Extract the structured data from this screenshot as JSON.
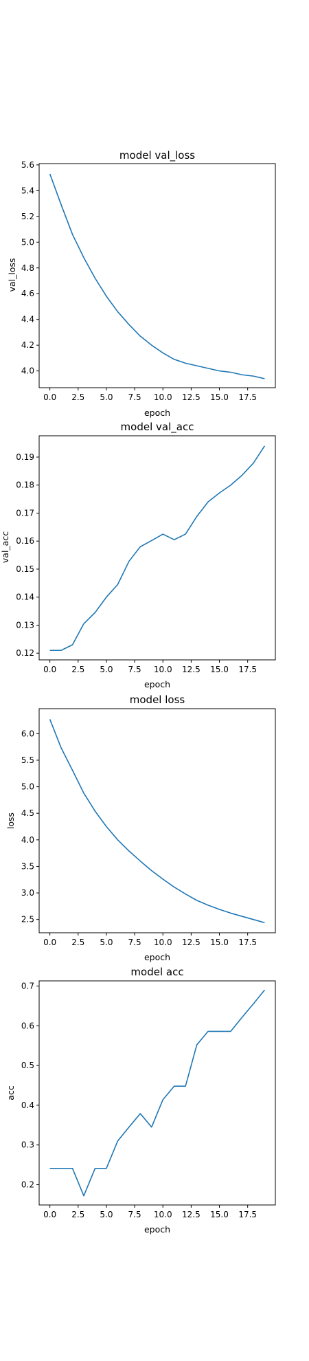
{
  "chart_data": [
    {
      "type": "line",
      "title": "model val_loss",
      "xlabel": "epoch",
      "ylabel": "val_loss",
      "x": [
        0,
        1,
        2,
        3,
        4,
        5,
        6,
        7,
        8,
        9,
        10,
        11,
        12,
        13,
        14,
        15,
        16,
        17,
        18,
        19
      ],
      "series": [
        {
          "values": [
            5.53,
            5.29,
            5.06,
            4.88,
            4.72,
            4.58,
            4.46,
            4.36,
            4.27,
            4.2,
            4.14,
            4.09,
            4.06,
            4.04,
            4.02,
            4.0,
            3.99,
            3.97,
            3.96,
            3.94
          ]
        }
      ],
      "xlim": [
        -0.95,
        19.95
      ],
      "ylim": [
        3.87,
        5.61
      ],
      "xticks": [
        0.0,
        2.5,
        5.0,
        7.5,
        10.0,
        12.5,
        15.0,
        17.5
      ],
      "xtick_labels": [
        "0.0",
        "2.5",
        "5.0",
        "7.5",
        "10.0",
        "12.5",
        "15.0",
        "17.5"
      ],
      "yticks": [
        4.0,
        4.2,
        4.4,
        4.6,
        4.8,
        5.0,
        5.2,
        5.4,
        5.6
      ],
      "ytick_labels": [
        "4.0",
        "4.2",
        "4.4",
        "4.6",
        "4.8",
        "5.0",
        "5.2",
        "5.4",
        "5.6"
      ],
      "color": "#1f77b4",
      "grid": false,
      "legend": "none"
    },
    {
      "type": "line",
      "title": "model val_acc",
      "xlabel": "epoch",
      "ylabel": "val_acc",
      "x": [
        0,
        1,
        2,
        3,
        4,
        5,
        6,
        7,
        8,
        9,
        10,
        11,
        12,
        13,
        14,
        15,
        16,
        17,
        18,
        19
      ],
      "series": [
        {
          "values": [
            0.121,
            0.121,
            0.123,
            0.1305,
            0.1345,
            0.14,
            0.1445,
            0.1528,
            0.158,
            0.1602,
            0.1625,
            0.1605,
            0.1625,
            0.1688,
            0.174,
            0.1772,
            0.18,
            0.1835,
            0.1878,
            0.194
          ]
        }
      ],
      "xlim": [
        -0.95,
        19.95
      ],
      "ylim": [
        0.1176,
        0.1976
      ],
      "xticks": [
        0.0,
        2.5,
        5.0,
        7.5,
        10.0,
        12.5,
        15.0,
        17.5
      ],
      "xtick_labels": [
        "0.0",
        "2.5",
        "5.0",
        "7.5",
        "10.0",
        "12.5",
        "15.0",
        "17.5"
      ],
      "yticks": [
        0.12,
        0.13,
        0.14,
        0.15,
        0.16,
        0.17,
        0.18,
        0.19
      ],
      "ytick_labels": [
        "0.12",
        "0.13",
        "0.14",
        "0.15",
        "0.16",
        "0.17",
        "0.18",
        "0.19"
      ],
      "color": "#1f77b4",
      "grid": false,
      "legend": "none"
    },
    {
      "type": "line",
      "title": "model loss",
      "xlabel": "epoch",
      "ylabel": "loss",
      "x": [
        0,
        1,
        2,
        3,
        4,
        5,
        6,
        7,
        8,
        9,
        10,
        11,
        12,
        13,
        14,
        15,
        16,
        17,
        18,
        19
      ],
      "series": [
        {
          "values": [
            6.27,
            5.73,
            5.31,
            4.88,
            4.54,
            4.25,
            4.0,
            3.79,
            3.6,
            3.42,
            3.26,
            3.11,
            2.98,
            2.86,
            2.77,
            2.69,
            2.62,
            2.56,
            2.5,
            2.44
          ]
        }
      ],
      "xlim": [
        -0.95,
        19.95
      ],
      "ylim": [
        2.25,
        6.47
      ],
      "xticks": [
        0.0,
        2.5,
        5.0,
        7.5,
        10.0,
        12.5,
        15.0,
        17.5
      ],
      "xtick_labels": [
        "0.0",
        "2.5",
        "5.0",
        "7.5",
        "10.0",
        "12.5",
        "15.0",
        "17.5"
      ],
      "yticks": [
        2.5,
        3.0,
        3.5,
        4.0,
        4.5,
        5.0,
        5.5,
        6.0
      ],
      "ytick_labels": [
        "2.5",
        "3.0",
        "3.5",
        "4.0",
        "4.5",
        "5.0",
        "5.5",
        "6.0"
      ],
      "color": "#1f77b4",
      "grid": false,
      "legend": "none"
    },
    {
      "type": "line",
      "title": "model acc",
      "xlabel": "epoch",
      "ylabel": "acc",
      "x": [
        0,
        1,
        2,
        3,
        4,
        5,
        6,
        7,
        8,
        9,
        10,
        11,
        12,
        13,
        14,
        15,
        16,
        17,
        18,
        19
      ],
      "series": [
        {
          "values": [
            0.241,
            0.241,
            0.241,
            0.172,
            0.241,
            0.241,
            0.31,
            0.345,
            0.379,
            0.345,
            0.414,
            0.448,
            0.448,
            0.552,
            0.586,
            0.586,
            0.586,
            0.621,
            0.655,
            0.69
          ]
        }
      ],
      "xlim": [
        -0.95,
        19.95
      ],
      "ylim": [
        0.149,
        0.713
      ],
      "xticks": [
        0.0,
        2.5,
        5.0,
        7.5,
        10.0,
        12.5,
        15.0,
        17.5
      ],
      "xtick_labels": [
        "0.0",
        "2.5",
        "5.0",
        "7.5",
        "10.0",
        "12.5",
        "15.0",
        "17.5"
      ],
      "yticks": [
        0.2,
        0.3,
        0.4,
        0.5,
        0.6,
        0.7
      ],
      "ytick_labels": [
        "0.2",
        "0.3",
        "0.4",
        "0.5",
        "0.6",
        "0.7"
      ],
      "color": "#1f77b4",
      "grid": false,
      "legend": "none"
    }
  ]
}
